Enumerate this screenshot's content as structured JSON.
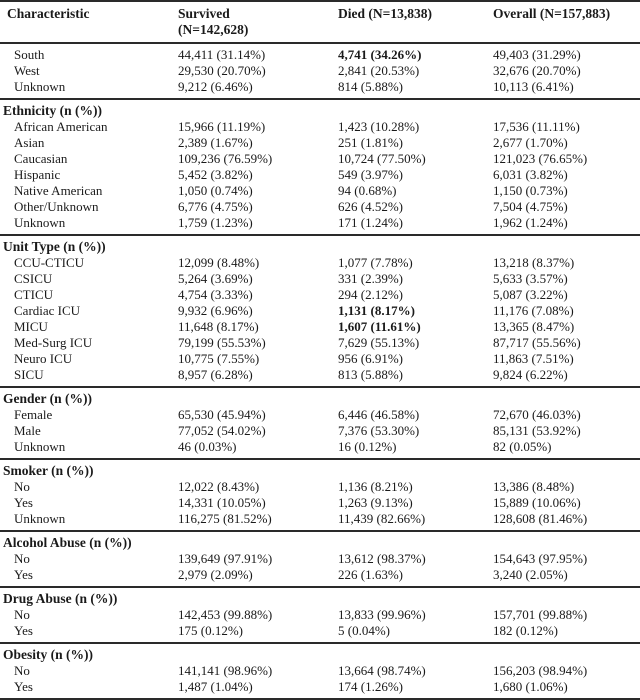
{
  "table": {
    "columns": [
      {
        "line1": "Characteristic",
        "line2": ""
      },
      {
        "line1": "Survived",
        "line2": "(N=142,628)"
      },
      {
        "line1": "Died (N=13,838)",
        "line2": ""
      },
      {
        "line1": "Overall (N=157,883)",
        "line2": ""
      }
    ],
    "sections": [
      {
        "header": "",
        "rows": [
          {
            "label": "South",
            "cells": [
              "44,411 (31.14%)",
              "4,741 (34.26%)",
              "49,403 (31.29%)"
            ],
            "bold": [
              1
            ]
          },
          {
            "label": "West",
            "cells": [
              "29,530 (20.70%)",
              "2,841 (20.53%)",
              "32,676 (20.70%)"
            ],
            "bold": []
          },
          {
            "label": "Unknown",
            "cells": [
              "9,212 (6.46%)",
              "814 (5.88%)",
              "10,113 (6.41%)"
            ],
            "bold": []
          }
        ]
      },
      {
        "header": "Ethnicity (n (%))",
        "rows": [
          {
            "label": "African American",
            "cells": [
              "15,966 (11.19%)",
              "1,423 (10.28%)",
              "17,536 (11.11%)"
            ],
            "bold": []
          },
          {
            "label": "Asian",
            "cells": [
              "2,389 (1.67%)",
              "251 (1.81%)",
              "2,677 (1.70%)"
            ],
            "bold": []
          },
          {
            "label": "Caucasian",
            "cells": [
              "109,236 (76.59%)",
              "10,724 (77.50%)",
              "121,023 (76.65%)"
            ],
            "bold": []
          },
          {
            "label": "Hispanic",
            "cells": [
              "5,452 (3.82%)",
              "549 (3.97%)",
              "6,031 (3.82%)"
            ],
            "bold": []
          },
          {
            "label": "Native American",
            "cells": [
              "1,050 (0.74%)",
              "94 (0.68%)",
              "1,150 (0.73%)"
            ],
            "bold": []
          },
          {
            "label": "Other/Unknown",
            "cells": [
              "6,776 (4.75%)",
              "626 (4.52%)",
              "7,504 (4.75%)"
            ],
            "bold": []
          },
          {
            "label": "Unknown",
            "cells": [
              "1,759 (1.23%)",
              "171 (1.24%)",
              "1,962 (1.24%)"
            ],
            "bold": []
          }
        ]
      },
      {
        "header": "Unit Type (n (%))",
        "rows": [
          {
            "label": "CCU-CTICU",
            "cells": [
              "12,099 (8.48%)",
              "1,077 (7.78%)",
              "13,218 (8.37%)"
            ],
            "bold": []
          },
          {
            "label": "CSICU",
            "cells": [
              "5,264 (3.69%)",
              "331 (2.39%)",
              "5,633 (3.57%)"
            ],
            "bold": []
          },
          {
            "label": "CTICU",
            "cells": [
              "4,754 (3.33%)",
              "294 (2.12%)",
              "5,087 (3.22%)"
            ],
            "bold": []
          },
          {
            "label": "Cardiac ICU",
            "cells": [
              "9,932 (6.96%)",
              "1,131 (8.17%)",
              "11,176 (7.08%)"
            ],
            "bold": [
              1
            ]
          },
          {
            "label": "MICU",
            "cells": [
              "11,648 (8.17%)",
              "1,607 (11.61%)",
              "13,365 (8.47%)"
            ],
            "bold": [
              1
            ]
          },
          {
            "label": "Med-Surg ICU",
            "cells": [
              "79,199 (55.53%)",
              "7,629 (55.13%)",
              "87,717 (55.56%)"
            ],
            "bold": []
          },
          {
            "label": "Neuro ICU",
            "cells": [
              "10,775 (7.55%)",
              "956 (6.91%)",
              "11,863 (7.51%)"
            ],
            "bold": []
          },
          {
            "label": "SICU",
            "cells": [
              "8,957 (6.28%)",
              "813 (5.88%)",
              "9,824 (6.22%)"
            ],
            "bold": []
          }
        ]
      },
      {
        "header": "Gender (n (%))",
        "rows": [
          {
            "label": "Female",
            "cells": [
              "65,530 (45.94%)",
              "6,446 (46.58%)",
              "72,670 (46.03%)"
            ],
            "bold": []
          },
          {
            "label": "Male",
            "cells": [
              "77,052 (54.02%)",
              "7,376 (53.30%)",
              "85,131 (53.92%)"
            ],
            "bold": []
          },
          {
            "label": "Unknown",
            "cells": [
              "46 (0.03%)",
              "16 (0.12%)",
              "82 (0.05%)"
            ],
            "bold": []
          }
        ]
      },
      {
        "header": "Smoker (n (%))",
        "rows": [
          {
            "label": "No",
            "cells": [
              "12,022 (8.43%)",
              "1,136 (8.21%)",
              "13,386 (8.48%)"
            ],
            "bold": []
          },
          {
            "label": "Yes",
            "cells": [
              "14,331 (10.05%)",
              "1,263 (9.13%)",
              "15,889 (10.06%)"
            ],
            "bold": []
          },
          {
            "label": "Unknown",
            "cells": [
              "116,275 (81.52%)",
              "11,439 (82.66%)",
              "128,608 (81.46%)"
            ],
            "bold": []
          }
        ]
      },
      {
        "header": "Alcohol Abuse (n (%))",
        "rows": [
          {
            "label": "No",
            "cells": [
              "139,649 (97.91%)",
              "13,612 (98.37%)",
              "154,643 (97.95%)"
            ],
            "bold": []
          },
          {
            "label": "Yes",
            "cells": [
              "2,979 (2.09%)",
              "226 (1.63%)",
              "3,240 (2.05%)"
            ],
            "bold": []
          }
        ]
      },
      {
        "header": "Drug Abuse (n (%))",
        "rows": [
          {
            "label": "No",
            "cells": [
              "142,453 (99.88%)",
              "13,833 (99.96%)",
              "157,701 (99.88%)"
            ],
            "bold": []
          },
          {
            "label": "Yes",
            "cells": [
              "175 (0.12%)",
              "5 (0.04%)",
              "182 (0.12%)"
            ],
            "bold": []
          }
        ]
      },
      {
        "header": "Obesity (n (%))",
        "rows": [
          {
            "label": "No",
            "cells": [
              "141,141 (98.96%)",
              "13,664 (98.74%)",
              "156,203 (98.94%)"
            ],
            "bold": []
          },
          {
            "label": "Yes",
            "cells": [
              "1,487 (1.04%)",
              "174 (1.26%)",
              "1,680 (1.06%)"
            ],
            "bold": []
          }
        ]
      }
    ]
  }
}
